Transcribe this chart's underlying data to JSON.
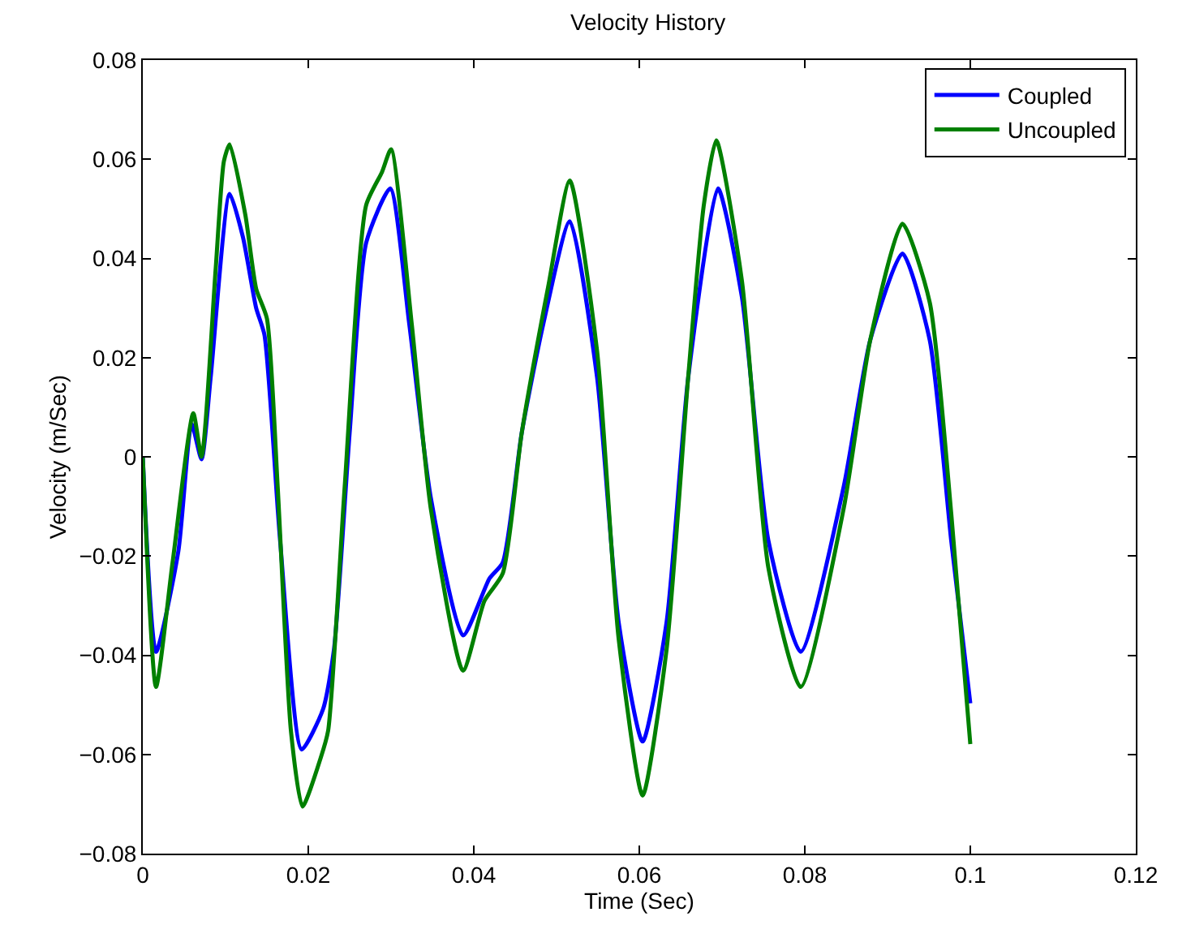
{
  "chart_data": {
    "type": "line",
    "title": "Velocity History",
    "xlabel": "Time (Sec)",
    "ylabel": "Velocity (m/Sec)",
    "xlim": [
      0,
      0.12
    ],
    "xticks": [
      0,
      0.02,
      0.04,
      0.06,
      0.08,
      0.1,
      0.12
    ],
    "ylim": [
      -0.08,
      0.08
    ],
    "yticks": [
      {
        "value": -0.08,
        "label": "−0.08"
      },
      {
        "value": -0.06,
        "label": "−0.06"
      },
      {
        "value": -0.04,
        "label": "−0.04"
      },
      {
        "value": -0.02,
        "label": "−0.02"
      },
      0,
      0.02,
      0.04,
      0.06,
      0.08
    ],
    "legend": "top right",
    "marker": "none",
    "line_style": "solid",
    "series": [
      {
        "name": "Coupled",
        "color": "#0000ff",
        "x": [
          0,
          0.0016,
          0.0043,
          0.0059,
          0.0071,
          0.0082,
          0.0105,
          0.0121,
          0.0137,
          0.0147,
          0.0166,
          0.0192,
          0.0218,
          0.0231,
          0.025,
          0.027,
          0.0299,
          0.0322,
          0.0348,
          0.0387,
          0.0419,
          0.0435,
          0.0458,
          0.0484,
          0.0516,
          0.0549,
          0.0575,
          0.0604,
          0.0633,
          0.0659,
          0.0695,
          0.0724,
          0.0756,
          0.0795,
          0.0847,
          0.0879,
          0.0918,
          0.0951,
          0.0977,
          0.1
        ],
        "values": [
          0,
          -0.0393,
          -0.019,
          0.0066,
          -0.0005,
          0.016,
          0.053,
          0.0443,
          0.03,
          0.0246,
          -0.017,
          -0.059,
          -0.0508,
          -0.0389,
          0.0049,
          0.0432,
          0.0541,
          0.0268,
          -0.0082,
          -0.036,
          -0.0245,
          -0.0213,
          0.0049,
          0.0268,
          0.0475,
          0.016,
          -0.0333,
          -0.0574,
          -0.0333,
          0.0158,
          0.0541,
          0.0322,
          -0.0169,
          -0.0393,
          -0.006,
          0.0235,
          0.041,
          0.0235,
          -0.017,
          -0.0497
        ]
      },
      {
        "name": "Uncoupled",
        "color": "#008000",
        "x": [
          0,
          0.0016,
          0.0036,
          0.0061,
          0.0071,
          0.0088,
          0.0098,
          0.0105,
          0.0124,
          0.0137,
          0.015,
          0.0163,
          0.0179,
          0.0193,
          0.0215,
          0.0224,
          0.0244,
          0.027,
          0.0289,
          0.03,
          0.0325,
          0.0348,
          0.0387,
          0.0413,
          0.0435,
          0.0458,
          0.049,
          0.0516,
          0.0549,
          0.0575,
          0.0604,
          0.0633,
          0.0659,
          0.0678,
          0.0693,
          0.0724,
          0.0756,
          0.0795,
          0.0847,
          0.0879,
          0.0918,
          0.0951,
          0.0977,
          0.1
        ],
        "values": [
          0,
          -0.0464,
          -0.0213,
          0.0088,
          0,
          0.0377,
          0.0596,
          0.063,
          0.0487,
          0.0339,
          0.0279,
          -0.006,
          -0.0552,
          -0.0705,
          -0.0607,
          -0.0552,
          -0.006,
          0.0508,
          0.0574,
          0.062,
          0.0268,
          -0.0104,
          -0.0431,
          -0.029,
          -0.0235,
          0.0049,
          0.0344,
          0.0557,
          0.0213,
          -0.0366,
          -0.0683,
          -0.0388,
          0.0159,
          0.0508,
          0.0638,
          0.0355,
          -0.0224,
          -0.0464,
          -0.0104,
          0.0235,
          0.047,
          0.0311,
          -0.0115,
          -0.0579
        ]
      }
    ]
  }
}
